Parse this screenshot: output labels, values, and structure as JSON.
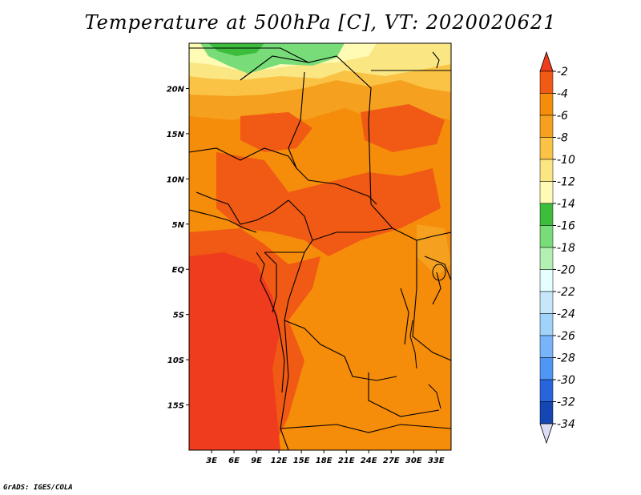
{
  "title": "Temperature at 500hPa [C], VT: 2020020621",
  "credit": "GrADS: IGES/COLA",
  "map": {
    "lon_range": [
      0,
      35
    ],
    "lat_range": [
      -20,
      25
    ],
    "lat_ticks": [
      {
        "value": 20,
        "label": "20N"
      },
      {
        "value": 15,
        "label": "15N"
      },
      {
        "value": 10,
        "label": "10N"
      },
      {
        "value": 5,
        "label": "5N"
      },
      {
        "value": 0,
        "label": "EQ"
      },
      {
        "value": -5,
        "label": "5S"
      },
      {
        "value": -10,
        "label": "10S"
      },
      {
        "value": -15,
        "label": "15S"
      }
    ],
    "lon_ticks": [
      {
        "value": 3,
        "label": "3E"
      },
      {
        "value": 6,
        "label": "6E"
      },
      {
        "value": 9,
        "label": "9E"
      },
      {
        "value": 12,
        "label": "12E"
      },
      {
        "value": 15,
        "label": "15E"
      },
      {
        "value": 18,
        "label": "18E"
      },
      {
        "value": 21,
        "label": "21E"
      },
      {
        "value": 24,
        "label": "24E"
      },
      {
        "value": 27,
        "label": "27E"
      },
      {
        "value": 30,
        "label": "30E"
      },
      {
        "value": 33,
        "label": "33E"
      }
    ]
  },
  "colorbar": {
    "top_color": "#f03c1e",
    "bottom_color": "#dcdcf5",
    "levels": [
      {
        "label": "-2",
        "color": "#f05a14"
      },
      {
        "label": "-4",
        "color": "#f58c0a"
      },
      {
        "label": "-6",
        "color": "#f5a01e"
      },
      {
        "label": "-8",
        "color": "#fac346"
      },
      {
        "label": "-10",
        "color": "#fae682"
      },
      {
        "label": "-12",
        "color": "#fffab4"
      },
      {
        "label": "-14",
        "color": "#3cbe3c"
      },
      {
        "label": "-16",
        "color": "#78dc78"
      },
      {
        "label": "-18",
        "color": "#b4f0b4"
      },
      {
        "label": "-20",
        "color": "#e6ffff"
      },
      {
        "label": "-22",
        "color": "#c8e6fa"
      },
      {
        "label": "-24",
        "color": "#a0d2fa"
      },
      {
        "label": "-26",
        "color": "#78b4fa"
      },
      {
        "label": "-28",
        "color": "#5096f5"
      },
      {
        "label": "-30",
        "color": "#2864dc"
      },
      {
        "label": "-32",
        "color": "#1446b4"
      },
      {
        "label": "-34",
        "color": "#0a1464"
      }
    ]
  },
  "field_colors": {
    "warmest": "#f03c1e",
    "warm": "#f05a14",
    "mid": "#f58c0a",
    "cool": "#f5a01e",
    "cooler": "#fac346",
    "cold": "#fae682",
    "colder": "#fffab4",
    "green": "#78dc78",
    "green_dark": "#3cbe3c"
  }
}
